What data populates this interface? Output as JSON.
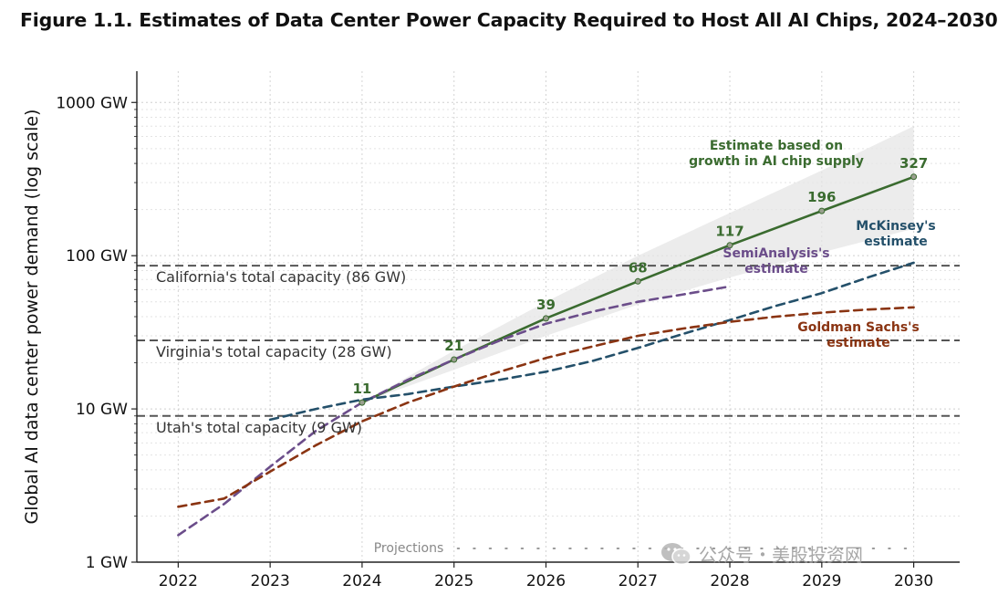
{
  "figure": {
    "title": "Figure 1.1. Estimates of Data Center Power Capacity Required to Host All AI Chips, 2024–2030"
  },
  "watermark": {
    "text": "公众号・美股投资网"
  },
  "colors": {
    "chip_supply": "#3a6b2f",
    "semianalysis": "#6b4d8a",
    "mckinsey": "#24506a",
    "goldman": "#8a3412",
    "reference": "#555555",
    "band": "#e6e6e6"
  },
  "chart_data": {
    "type": "line",
    "ylabel": "Global AI data center power demand (log scale)",
    "yscale": "log",
    "xlim": [
      2021.55,
      2030.5
    ],
    "ylim": [
      1,
      1600
    ],
    "x_ticks": [
      2022,
      2023,
      2024,
      2025,
      2026,
      2027,
      2028,
      2029,
      2030
    ],
    "y_ticks": [
      {
        "value": 1,
        "label": "1 GW"
      },
      {
        "value": 10,
        "label": "10 GW"
      },
      {
        "value": 100,
        "label": "100 GW"
      },
      {
        "value": 1000,
        "label": "1000 GW"
      }
    ],
    "grid": true,
    "series": [
      {
        "name": "Estimate based on growth in AI chip supply",
        "label_lines": [
          "Estimate based on",
          "growth in AI chip supply"
        ],
        "style": "solid",
        "x": [
          2024,
          2025,
          2026,
          2027,
          2028,
          2029,
          2030
        ],
        "y": [
          11,
          21,
          39,
          68,
          117,
          196,
          327
        ],
        "point_labels": [
          "11",
          "21",
          "39",
          "68",
          "117",
          "196",
          "327"
        ],
        "band_upper": [
          11,
          24,
          50,
          100,
          190,
          360,
          700
        ],
        "band_lower": [
          11,
          18,
          30,
          48,
          72,
          105,
          150
        ]
      },
      {
        "name": "SemiAnalysis's estimate",
        "label_lines": [
          "SemiAnalysis's",
          "estimate"
        ],
        "style": "dashed",
        "x": [
          2022,
          2022.5,
          2023,
          2023.5,
          2024,
          2024.5,
          2025,
          2025.5,
          2026,
          2026.5,
          2027,
          2027.5,
          2028
        ],
        "y": [
          1.5,
          2.4,
          4.2,
          7.2,
          11,
          15.5,
          21,
          28,
          36,
          43,
          50,
          56,
          63
        ]
      },
      {
        "name": "McKinsey's estimate",
        "label_lines": [
          "McKinsey's",
          "estimate"
        ],
        "style": "dashed",
        "x": [
          2023,
          2023.5,
          2024,
          2024.5,
          2025,
          2025.5,
          2026,
          2026.5,
          2027,
          2027.5,
          2028,
          2028.5,
          2029,
          2029.5,
          2030
        ],
        "y": [
          8.5,
          10,
          11.5,
          12.5,
          14,
          15.5,
          17.5,
          20.5,
          25,
          31,
          38,
          47,
          57,
          72,
          90
        ]
      },
      {
        "name": "Goldman Sachs's estimate",
        "label_lines": [
          "Goldman Sachs's",
          "estimate"
        ],
        "style": "dashed",
        "x": [
          2022,
          2022.5,
          2023,
          2023.5,
          2024,
          2024.5,
          2025,
          2025.5,
          2026,
          2026.5,
          2027,
          2027.5,
          2028,
          2028.5,
          2029,
          2029.5,
          2030
        ],
        "y": [
          2.3,
          2.6,
          3.9,
          5.8,
          8.3,
          11,
          14,
          17.5,
          21.5,
          25.5,
          30,
          33.5,
          37,
          40,
          42.5,
          44.5,
          46
        ]
      }
    ],
    "reference_lines": [
      {
        "label": "California's total capacity (86 GW)",
        "value": 86
      },
      {
        "label": "Virginia's total capacity (28 GW)",
        "value": 28
      },
      {
        "label": "Utah's total capacity (9 GW)",
        "value": 9
      }
    ],
    "annotations": [
      {
        "text": "Projections",
        "x_start": 2025,
        "x_end": 2030
      }
    ]
  }
}
